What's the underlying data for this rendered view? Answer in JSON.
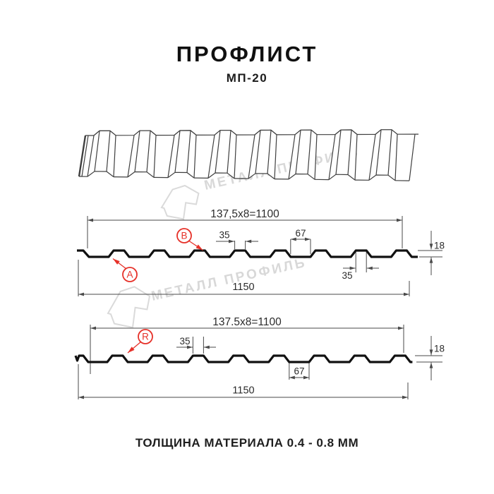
{
  "header": {
    "title": "ПРОФЛИСТ",
    "subtitle": "МП-20"
  },
  "watermark": {
    "brand": "МЕТАЛЛ ПРОФИЛЬ"
  },
  "profiles": [
    {
      "id": "top-section",
      "pitch_formula": "137,5x8=1100",
      "overall_width": "1150",
      "crest_width": "35",
      "valley_width": "67",
      "crest_width_bottom": "35",
      "height": "18",
      "point_labels": [
        "A",
        "B"
      ]
    },
    {
      "id": "bottom-section",
      "pitch_formula": "137.5x8=1100",
      "overall_width": "1150",
      "crest_width": "35",
      "valley_width": "67",
      "height": "18",
      "point_labels": [
        "R"
      ]
    }
  ],
  "footer": {
    "caption": "ТОЛЩИНА МАТЕРИАЛА 0.4 - 0.8 ММ"
  },
  "colors": {
    "accent_red": "#e63129",
    "drawing_line": "#111111",
    "dimension_line": "#4a4a4a",
    "watermark_gray": "#d8d8d8",
    "background": "#ffffff"
  }
}
